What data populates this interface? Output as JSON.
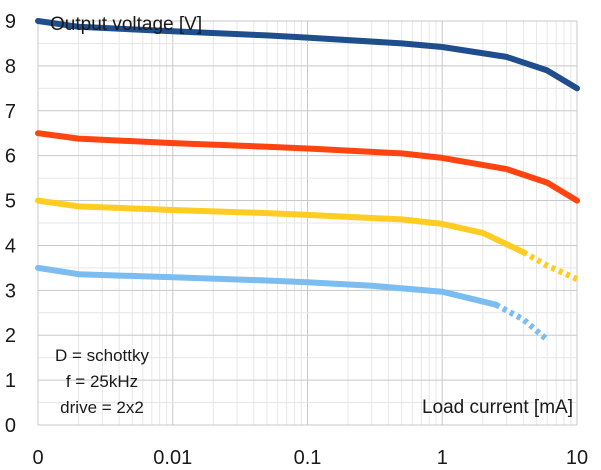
{
  "chart_data": {
    "type": "line",
    "title": "",
    "ylabel": "Output voltage [V]",
    "xlabel": "Load current [mA]",
    "x_scale": "log-like (first tick 0)",
    "x_ticks": [
      "0",
      "0.01",
      "0.1",
      "1",
      "10"
    ],
    "y_ticks": [
      "0",
      "1",
      "2",
      "3",
      "4",
      "5",
      "6",
      "7",
      "8",
      "9"
    ],
    "xlim": [
      0,
      10
    ],
    "ylim": [
      0,
      9
    ],
    "grid": true,
    "annotation_lines": [
      "D = schottky",
      "f = 25kHz",
      "drive = 2x2"
    ],
    "series": [
      {
        "color": "#1f4e8c",
        "points": [
          [
            0,
            9.0
          ],
          [
            0.002,
            8.87
          ],
          [
            0.01,
            8.77
          ],
          [
            0.05,
            8.68
          ],
          [
            0.1,
            8.63
          ],
          [
            0.5,
            8.5
          ],
          [
            1,
            8.42
          ],
          [
            3,
            8.2
          ],
          [
            6,
            7.9
          ],
          [
            10,
            7.5
          ]
        ],
        "dashed_after": null
      },
      {
        "color": "#ff4411",
        "points": [
          [
            0,
            6.5
          ],
          [
            0.002,
            6.38
          ],
          [
            0.01,
            6.28
          ],
          [
            0.05,
            6.2
          ],
          [
            0.1,
            6.16
          ],
          [
            0.5,
            6.05
          ],
          [
            1,
            5.95
          ],
          [
            3,
            5.7
          ],
          [
            6,
            5.4
          ],
          [
            10,
            5.0
          ]
        ],
        "dashed_after": null
      },
      {
        "color": "#ffcc22",
        "points": [
          [
            0,
            5.0
          ],
          [
            0.002,
            4.87
          ],
          [
            0.01,
            4.79
          ],
          [
            0.05,
            4.72
          ],
          [
            0.1,
            4.68
          ],
          [
            0.5,
            4.58
          ],
          [
            1,
            4.48
          ],
          [
            2,
            4.28
          ],
          [
            4,
            3.85
          ],
          [
            6,
            3.55
          ],
          [
            10,
            3.25
          ]
        ],
        "dashed_after": 4
      },
      {
        "color": "#7bbdf0",
        "points": [
          [
            0,
            3.5
          ],
          [
            0.002,
            3.36
          ],
          [
            0.01,
            3.29
          ],
          [
            0.05,
            3.22
          ],
          [
            0.1,
            3.18
          ],
          [
            0.3,
            3.1
          ],
          [
            1,
            2.97
          ],
          [
            2.5,
            2.68
          ],
          [
            4,
            2.35
          ],
          [
            6,
            1.9
          ]
        ],
        "dashed_after": 2.5
      }
    ]
  }
}
